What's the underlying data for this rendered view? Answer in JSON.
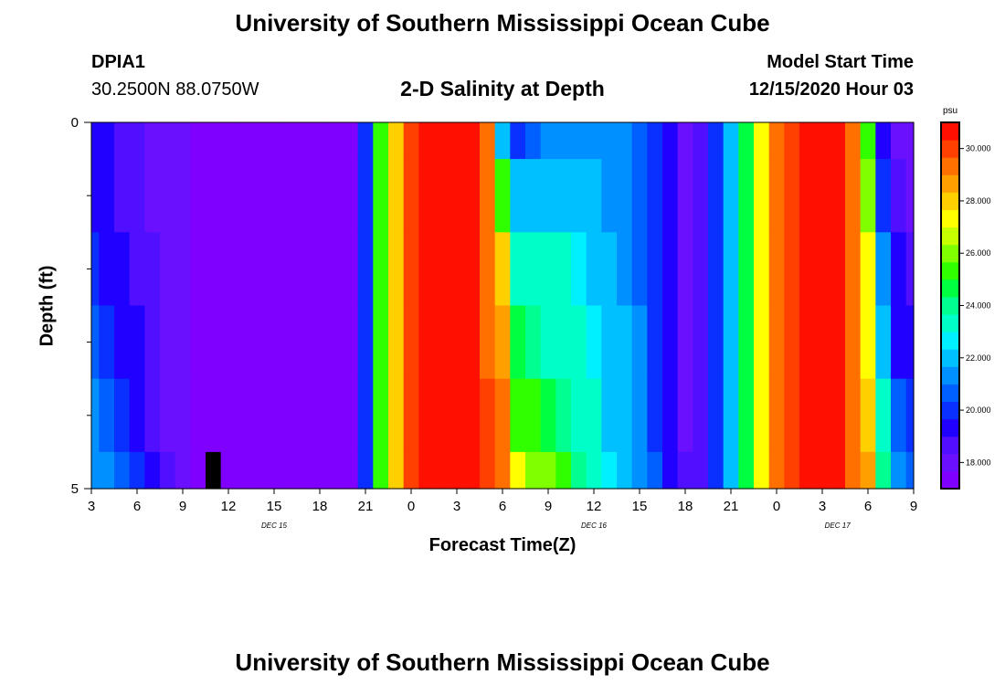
{
  "header": {
    "title": "University of Southern Mississippi Ocean Cube",
    "station": "DPIA1",
    "coords": "30.2500N 88.0750W",
    "model_start_label": "Model Start Time",
    "model_start_value": "12/15/2020 Hour 03",
    "footer_title": "University of Southern Mississippi Ocean Cube"
  },
  "colors": {
    "palette": [
      "#7f00ff",
      "#6a10ff",
      "#5010ff",
      "#2000ff",
      "#0a30ff",
      "#0060ff",
      "#0090ff",
      "#00c0ff",
      "#00f0ff",
      "#00ffc8",
      "#00ff90",
      "#00ff40",
      "#30ff00",
      "#80ff00",
      "#c8ff00",
      "#ffff00",
      "#ffd000",
      "#ffa000",
      "#ff7000",
      "#ff4000",
      "#ff1000"
    ],
    "mask": "#ff00ff",
    "missing": "#000000"
  },
  "chart_data": {
    "type": "heatmap",
    "title": "2-D Salinity at Depth",
    "xlabel": "Forecast Time(Z)",
    "ylabel": "Depth (ft)",
    "x_start_hour": 3,
    "x_step_hours": 1,
    "x_range_hours": [
      3,
      57
    ],
    "y_range": [
      0,
      5
    ],
    "y_tick_labels": [
      "0",
      "5"
    ],
    "y_minor_ticks": [
      1,
      2,
      3,
      4
    ],
    "x_tick_labels": [
      "3",
      "6",
      "9",
      "12",
      "15",
      "18",
      "21",
      "0",
      "3",
      "6",
      "9",
      "12",
      "15",
      "18",
      "21",
      "0",
      "3",
      "6",
      "9"
    ],
    "date_labels": [
      {
        "hour": 15,
        "text": "DEC 15"
      },
      {
        "hour": 36,
        "text": "DEC 16"
      },
      {
        "hour": 52,
        "text": "DEC 17"
      }
    ],
    "colorbar": {
      "unit": "psu",
      "range": [
        17,
        31
      ],
      "ticks": [
        "18.000",
        "20.000",
        "22.000",
        "24.000",
        "26.000",
        "28.000",
        "30.000"
      ]
    },
    "depths": [
      0,
      1,
      2,
      3,
      4,
      5
    ],
    "profiles": [
      [
        19.5,
        19.5,
        20.0,
        20.5,
        21.0,
        21.5
      ],
      [
        19.0,
        19.0,
        19.5,
        20.0,
        20.5,
        21.0
      ],
      [
        18.7,
        18.8,
        19.2,
        19.5,
        20.0,
        20.5
      ],
      [
        18.5,
        18.6,
        18.8,
        19.0,
        19.3,
        19.7
      ],
      [
        18.3,
        18.3,
        18.5,
        18.6,
        18.8,
        19.0
      ],
      [
        18.0,
        18.0,
        18.1,
        18.2,
        18.3,
        18.4
      ],
      [
        17.8,
        17.8,
        17.8,
        17.8,
        17.9,
        18.0
      ],
      [
        17.6,
        17.6,
        17.6,
        17.6,
        17.6,
        17.6
      ],
      [
        17.5,
        17.5,
        17.5,
        17.5,
        17.5,
        null
      ],
      [
        17.3,
        17.3,
        17.3,
        17.3,
        17.3,
        17.3
      ],
      [
        17.3,
        17.3,
        17.3,
        17.3,
        17.3,
        17.3
      ],
      [
        17.2,
        17.2,
        17.2,
        17.2,
        17.2,
        17.2
      ],
      [
        17.2,
        17.2,
        17.2,
        17.2,
        17.2,
        17.2
      ],
      [
        17.1,
        17.1,
        17.1,
        17.1,
        17.1,
        17.1
      ],
      [
        17.1,
        17.1,
        17.1,
        17.1,
        17.1,
        17.1
      ],
      [
        17.1,
        17.1,
        17.1,
        17.1,
        17.1,
        17.1
      ],
      [
        17.2,
        17.2,
        17.2,
        17.2,
        17.2,
        17.2
      ],
      [
        17.3,
        17.3,
        17.3,
        17.3,
        17.3,
        17.3
      ],
      [
        20.0,
        20.0,
        20.0,
        20.0,
        20.0,
        20.0
      ],
      [
        25.0,
        25.0,
        25.0,
        25.0,
        25.0,
        25.0
      ],
      [
        28.0,
        28.0,
        28.0,
        28.0,
        28.0,
        28.0
      ],
      [
        30.0,
        30.0,
        30.0,
        30.0,
        30.0,
        30.0
      ],
      [
        30.5,
        30.5,
        30.5,
        30.5,
        30.5,
        30.5
      ],
      [
        30.7,
        30.7,
        30.7,
        30.7,
        30.7,
        30.7
      ],
      [
        30.7,
        30.7,
        30.7,
        30.7,
        30.7,
        30.7
      ],
      [
        30.5,
        30.5,
        30.5,
        30.5,
        30.5,
        30.5
      ],
      [
        29.0,
        29.0,
        29.5,
        29.5,
        30.0,
        30.0
      ],
      [
        22.0,
        25.0,
        28.0,
        28.5,
        29.0,
        29.5
      ],
      [
        20.0,
        22.0,
        23.5,
        24.5,
        25.5,
        27.0
      ],
      [
        20.5,
        22.0,
        23.0,
        24.0,
        25.0,
        26.0
      ],
      [
        21.0,
        22.0,
        23.0,
        23.5,
        24.5,
        26.0
      ],
      [
        21.5,
        22.0,
        23.0,
        23.5,
        24.0,
        25.0
      ],
      [
        21.5,
        22.0,
        22.5,
        23.0,
        23.5,
        24.0
      ],
      [
        21.5,
        21.8,
        22.2,
        22.5,
        23.0,
        23.2
      ],
      [
        21.3,
        21.5,
        21.8,
        22.0,
        22.2,
        22.5
      ],
      [
        21.0,
        21.2,
        21.5,
        21.8,
        22.0,
        22.0
      ],
      [
        20.5,
        20.5,
        20.8,
        21.0,
        21.3,
        21.5
      ],
      [
        19.8,
        19.8,
        20.0,
        20.2,
        20.3,
        20.5
      ],
      [
        19.0,
        19.0,
        19.2,
        19.3,
        19.5,
        19.6
      ],
      [
        18.2,
        18.2,
        18.2,
        18.3,
        18.3,
        18.4
      ],
      [
        18.5,
        18.5,
        18.5,
        18.5,
        18.5,
        18.5
      ],
      [
        20.0,
        20.0,
        20.0,
        20.0,
        20.0,
        20.0
      ],
      [
        22.0,
        22.0,
        22.0,
        22.0,
        22.0,
        22.0
      ],
      [
        24.5,
        24.5,
        24.5,
        24.5,
        24.5,
        24.5
      ],
      [
        27.0,
        27.0,
        27.0,
        27.0,
        27.0,
        27.0
      ],
      [
        29.0,
        29.0,
        29.0,
        29.0,
        29.0,
        29.0
      ],
      [
        30.3,
        30.3,
        30.3,
        30.3,
        30.3,
        30.3
      ],
      [
        30.8,
        30.8,
        30.8,
        30.8,
        30.8,
        30.8
      ],
      [
        30.8,
        30.8,
        30.8,
        30.8,
        30.8,
        30.8
      ],
      [
        30.5,
        30.5,
        30.5,
        30.5,
        30.5,
        30.5
      ],
      [
        29.5,
        29.5,
        29.5,
        29.5,
        29.5,
        29.5
      ],
      [
        25.0,
        26.0,
        27.0,
        27.5,
        28.0,
        28.5
      ],
      [
        19.0,
        20.0,
        21.0,
        22.0,
        23.0,
        24.0
      ],
      [
        18.0,
        18.5,
        19.0,
        19.5,
        20.5,
        21.0
      ],
      [
        18.0,
        18.3,
        18.8,
        19.3,
        20.0,
        20.5
      ]
    ]
  }
}
